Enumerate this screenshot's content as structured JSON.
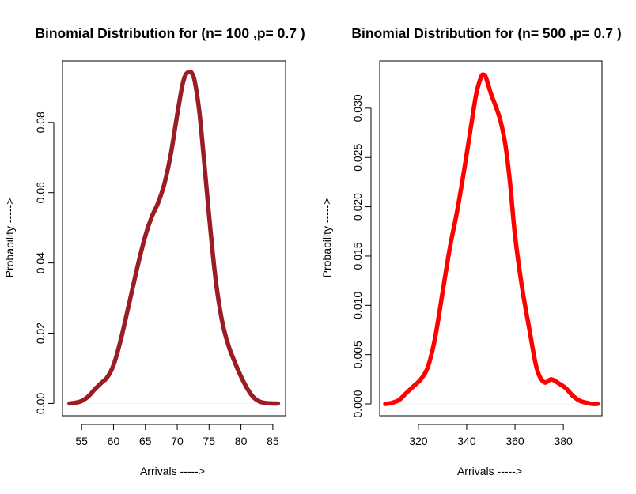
{
  "chart_data": [
    {
      "type": "line",
      "title": "Binomial Distribution for (n= 100 ,p= 0.7 )",
      "xlabel": "Arrivals ----->",
      "ylabel": "Probability ----->",
      "xlim": [
        52,
        87
      ],
      "ylim": [
        -0.0035,
        0.0975
      ],
      "x_ticks": [
        55,
        60,
        65,
        70,
        75,
        80,
        85
      ],
      "x_tick_labels": [
        "55",
        "60",
        "65",
        "70",
        "75",
        "80",
        "85"
      ],
      "y_ticks": [
        0.0,
        0.02,
        0.04,
        0.06,
        0.08
      ],
      "y_tick_labels": [
        "0.00",
        "0.02",
        "0.04",
        "0.06",
        "0.08"
      ],
      "grid": false,
      "color": "#9b1c22",
      "series": [
        {
          "x": [
            53.1,
            54.0,
            55.0,
            56.0,
            57.0,
            58.0,
            59.0,
            60.0,
            61.0,
            62.0,
            63.0,
            64.0,
            65.0,
            66.0,
            67.0,
            68.0,
            69.0,
            70.0,
            70.8,
            71.3,
            71.8,
            72.3,
            72.8,
            73.5,
            74.2,
            75.0,
            76.0,
            77.0,
            78.0,
            79.0,
            80.0,
            81.0,
            82.0,
            83.0,
            84.0,
            85.0,
            85.8
          ],
          "values": [
            0.0,
            0.0002,
            0.0007,
            0.0019,
            0.0039,
            0.0057,
            0.0074,
            0.0109,
            0.0171,
            0.0248,
            0.0328,
            0.0407,
            0.0477,
            0.0531,
            0.0571,
            0.0626,
            0.071,
            0.0822,
            0.0905,
            0.0935,
            0.0943,
            0.094,
            0.0912,
            0.0825,
            0.0693,
            0.0534,
            0.0357,
            0.0238,
            0.0167,
            0.0119,
            0.0077,
            0.0042,
            0.0017,
            0.0005,
            0.0001,
            0.0,
            0.0
          ]
        }
      ]
    },
    {
      "type": "line",
      "title": "Binomial Distribution for (n= 500 ,p= 0.7 )",
      "xlabel": "Arrivals ----->",
      "ylabel": "Probability ----->",
      "xlim": [
        304,
        396
      ],
      "ylim": [
        -0.0012,
        0.0348
      ],
      "x_ticks": [
        320,
        340,
        360,
        380
      ],
      "x_tick_labels": [
        "320",
        "340",
        "360",
        "380"
      ],
      "y_ticks": [
        0.0,
        0.005,
        0.01,
        0.015,
        0.02,
        0.025,
        0.03
      ],
      "y_tick_labels": [
        "0.000",
        "0.005",
        "0.010",
        "0.015",
        "0.020",
        "0.025",
        "0.030"
      ],
      "grid": false,
      "color": "#ff0000",
      "series": [
        {
          "x": [
            306.3,
            309.0,
            312.0,
            315.0,
            318.0,
            321.0,
            324.0,
            327.0,
            330.0,
            333.0,
            336.0,
            339.0,
            342.0,
            344.0,
            346.0,
            347.0,
            348.0,
            350.0,
            352.0,
            354.0,
            356.0,
            358.0,
            360.0,
            363.0,
            366.0,
            369.0,
            372.0,
            375.0,
            378.0,
            381.0,
            384.0,
            387.0,
            390.0,
            392.0,
            394.2
          ],
          "values": [
            0.0,
            0.0001,
            0.0004,
            0.0011,
            0.0018,
            0.0025,
            0.0038,
            0.0068,
            0.0113,
            0.0158,
            0.0195,
            0.0238,
            0.0285,
            0.0315,
            0.0332,
            0.0334,
            0.0331,
            0.0315,
            0.0302,
            0.0287,
            0.0263,
            0.0223,
            0.0171,
            0.0117,
            0.0075,
            0.0036,
            0.0022,
            0.0025,
            0.0021,
            0.0016,
            0.0008,
            0.0003,
            0.0001,
            0.0,
            0.0
          ]
        }
      ]
    }
  ]
}
